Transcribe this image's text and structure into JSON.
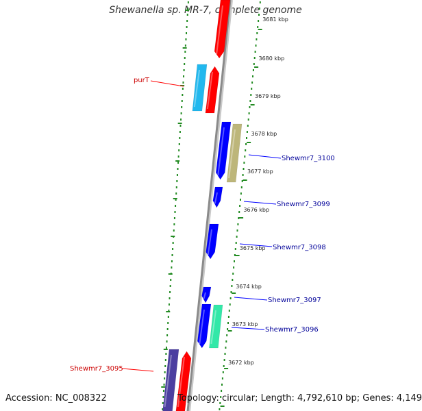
{
  "title": "Shewanella sp. MR-7, complete genome",
  "footer": {
    "accession": "Accession: NC_008322",
    "topology": "Topology: circular; Length: 4,792,610 bp; Genes: 4,149"
  },
  "colors": {
    "forward_gene": "#ff0000",
    "reverse_gene": "#0000ff",
    "purT": "#22b8ee",
    "Shewmr7_3100": "#bdb67a",
    "Shewmr7_3096": "#33e8a8",
    "Shewmr7_3095": "#4b3fa0",
    "backbone": "#8a8a8a",
    "dotted_ring": "#228b22",
    "forward_label": "#cc0000",
    "reverse_label": "#000099"
  },
  "ticks": [
    {
      "label": "3681 kbp"
    },
    {
      "label": "3680 kbp"
    },
    {
      "label": "3679 kbp"
    },
    {
      "label": "3678 kbp"
    },
    {
      "label": "3677 kbp"
    },
    {
      "label": "3676 kbp"
    },
    {
      "label": "3675 kbp"
    },
    {
      "label": "3674 kbp"
    },
    {
      "label": "3673 kbp"
    },
    {
      "label": "3672 kbp"
    }
  ],
  "gene_labels": [
    {
      "name": "purT",
      "strand": "forward"
    },
    {
      "name": "Shewmr7_3100",
      "strand": "reverse"
    },
    {
      "name": "Shewmr7_3099",
      "strand": "reverse"
    },
    {
      "name": "Shewmr7_3098",
      "strand": "reverse"
    },
    {
      "name": "Shewmr7_3097",
      "strand": "reverse"
    },
    {
      "name": "Shewmr7_3096",
      "strand": "reverse"
    },
    {
      "name": "Shewmr7_3095",
      "strand": "forward"
    }
  ]
}
